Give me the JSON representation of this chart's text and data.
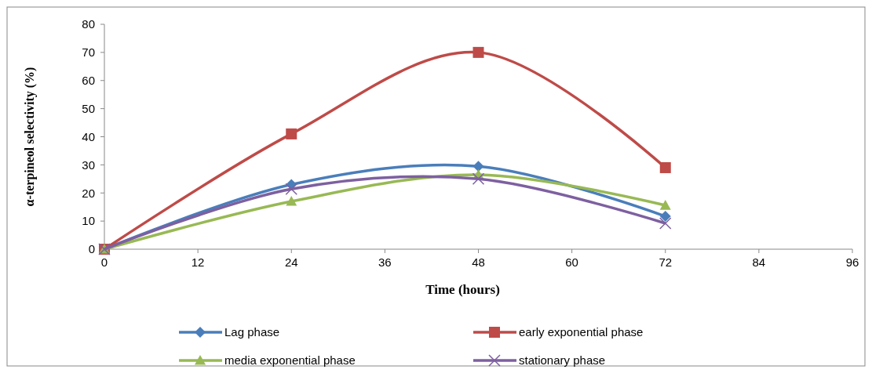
{
  "chart_data": {
    "type": "line",
    "xlabel": "Time (hours)",
    "ylabel": "α-terpineol selectivity (%)",
    "x": [
      0,
      24,
      48,
      72
    ],
    "series": [
      {
        "name": "Lag phase",
        "color": "#4a7ebb",
        "marker": "diamond",
        "values": [
          0,
          23,
          29.5,
          11.7
        ]
      },
      {
        "name": "early exponential phase",
        "color": "#be4b48",
        "marker": "square",
        "values": [
          0,
          41,
          70,
          29
        ]
      },
      {
        "name": "media exponential phase",
        "color": "#98b954",
        "marker": "triangle",
        "values": [
          0,
          17,
          26.5,
          15.6
        ]
      },
      {
        "name": "stationary phase",
        "color": "#7d60a0",
        "marker": "cross",
        "values": [
          0,
          21.4,
          25,
          9.2
        ]
      }
    ],
    "xlim": [
      0,
      96
    ],
    "xticks": [
      0,
      12,
      24,
      36,
      48,
      60,
      72,
      84,
      96
    ],
    "ylim": [
      0,
      80
    ],
    "yticks": [
      0,
      10,
      20,
      30,
      40,
      50,
      60,
      70,
      80
    ],
    "grid": false,
    "legend": "bottom"
  }
}
